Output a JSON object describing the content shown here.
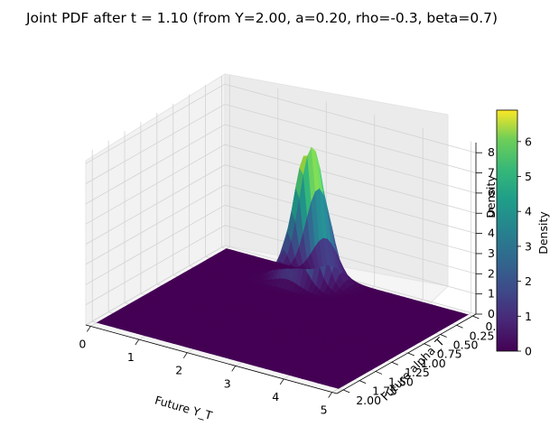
{
  "chart_data": {
    "type": "surface3d",
    "title": "Joint PDF after t = 1.10  (from Y=2.00, a=0.20, rho=-0.3, beta=0.7)",
    "xlabel": "Future Y_T",
    "ylabel": "Future alpha_T",
    "zlabel": "Density",
    "xlim": [
      -0.1,
      5.1
    ],
    "ylim": [
      -0.05,
      2.1
    ],
    "zlim": [
      0,
      8.5
    ],
    "x_ticks": [
      0,
      1,
      2,
      3,
      4,
      5
    ],
    "x_tick_labels": [
      "0",
      "1",
      "2",
      "3",
      "4",
      "5"
    ],
    "y_ticks": [
      0,
      0.25,
      0.5,
      0.75,
      1.0,
      1.25,
      1.5,
      1.75,
      2.0
    ],
    "y_tick_labels": [
      "0.00",
      "0.25",
      "0.50",
      "0.75",
      "1.00",
      "1.25",
      "1.50",
      "1.75",
      "2.00"
    ],
    "z_ticks": [
      0,
      1,
      2,
      3,
      4,
      5,
      6,
      7,
      8
    ],
    "z_tick_labels": [
      "0",
      "1",
      "2",
      "3",
      "4",
      "5",
      "6",
      "7",
      "8"
    ],
    "surface_x_range": [
      0,
      5
    ],
    "surface_y_range": [
      0,
      2
    ],
    "peak": {
      "x": 2.0,
      "y": 0.2,
      "z": 6.9
    },
    "spread": {
      "sigma_x": 0.28,
      "sigma_y": 0.09,
      "rho": -0.3
    },
    "grid": true,
    "colormap": "viridis",
    "colorbar": {
      "label": "Density",
      "range": [
        0,
        6.9
      ],
      "ticks": [
        0,
        1,
        2,
        3,
        4,
        5,
        6
      ],
      "tick_labels": [
        "0",
        "1",
        "2",
        "3",
        "4",
        "5",
        "6"
      ],
      "placement": "right"
    }
  }
}
